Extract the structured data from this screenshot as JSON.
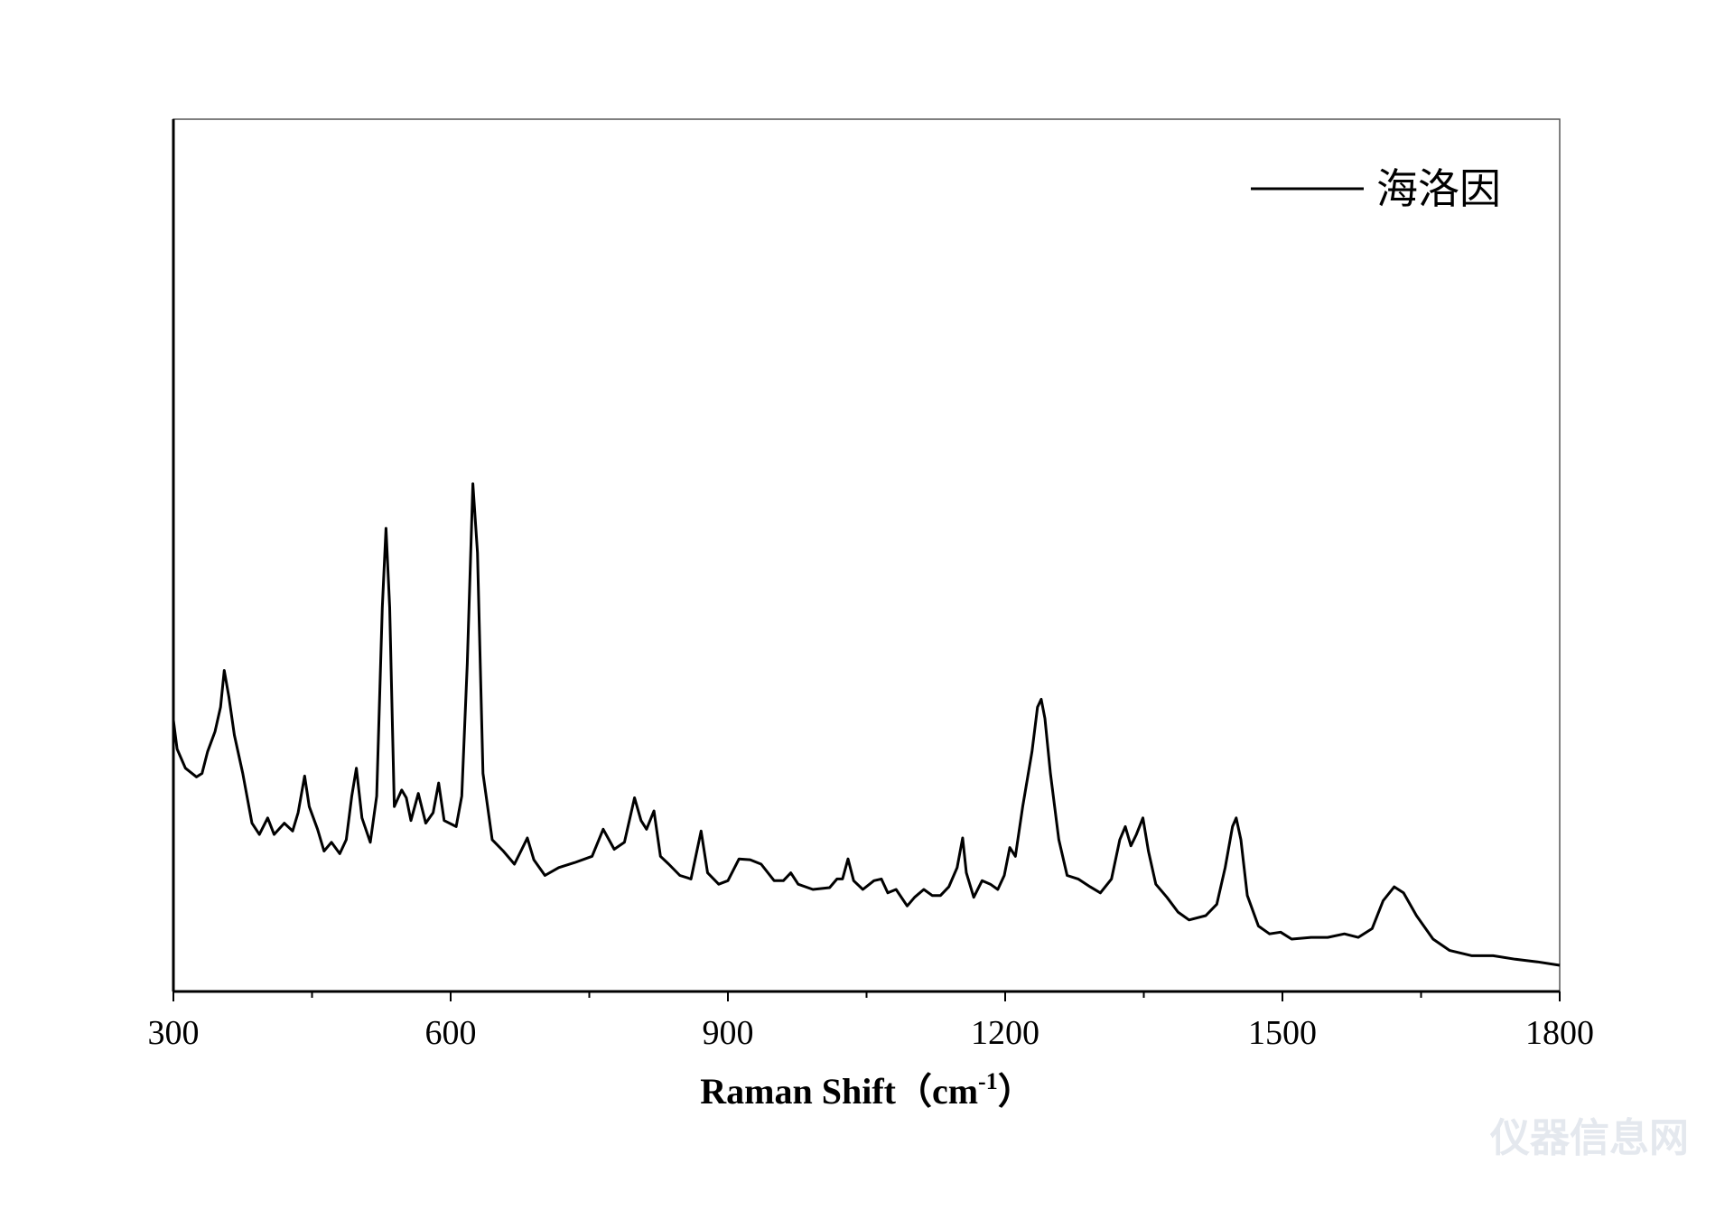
{
  "chart_data": {
    "type": "line",
    "xlabel": {
      "text": "Raman Shift（cm",
      "sup": "-1",
      "end": "）"
    },
    "xlim": [
      300,
      1800
    ],
    "xticks": [
      300,
      600,
      900,
      1200,
      1500,
      1800
    ],
    "xminor_ticks": [
      450,
      750,
      1050,
      1350,
      1650
    ],
    "ylim": [
      0,
      100
    ],
    "legend_position": "upper right",
    "watermark": "仪器信息网",
    "series": [
      {
        "name": "海洛因",
        "color": "#000000",
        "x": [
          300,
          304,
          313,
          325,
          331,
          337,
          345,
          351,
          355,
          360,
          366,
          375,
          385,
          393,
          402,
          409,
          420,
          429,
          435,
          442,
          447,
          456,
          463,
          471,
          480,
          487,
          493,
          498,
          504,
          513,
          520,
          526,
          530,
          534,
          539,
          547,
          552,
          557,
          565,
          573,
          581,
          587,
          593,
          606,
          612,
          618,
          624,
          629,
          635,
          645,
          657,
          669,
          677,
          683,
          690,
          702,
          717,
          735,
          753,
          765,
          777,
          788,
          799,
          806,
          812,
          820,
          827,
          836,
          848,
          860,
          871,
          878,
          890,
          900,
          912,
          924,
          936,
          950,
          960,
          968,
          976,
          992,
          1010,
          1018,
          1024,
          1030,
          1036,
          1046,
          1058,
          1066,
          1073,
          1082,
          1094,
          1102,
          1112,
          1121,
          1130,
          1139,
          1148,
          1154,
          1158,
          1166,
          1175,
          1184,
          1192,
          1199,
          1205,
          1211,
          1219,
          1229,
          1235,
          1239,
          1243,
          1249,
          1258,
          1267,
          1279,
          1292,
          1303,
          1315,
          1324,
          1330,
          1336,
          1342,
          1349,
          1355,
          1363,
          1375,
          1387,
          1399,
          1417,
          1429,
          1438,
          1446,
          1450,
          1455,
          1462,
          1474,
          1486,
          1498,
          1510,
          1531,
          1549,
          1567,
          1582,
          1597,
          1609,
          1621,
          1631,
          1645,
          1663,
          1681,
          1705,
          1728,
          1752,
          1776,
          1800
        ],
        "values": [
          31.1,
          27.8,
          25.6,
          24.6,
          25.0,
          27.5,
          29.8,
          32.6,
          36.8,
          33.8,
          29.4,
          25.0,
          19.3,
          18.0,
          19.9,
          18.0,
          19.3,
          18.4,
          20.5,
          24.7,
          21.2,
          18.6,
          16.1,
          17.1,
          15.8,
          17.4,
          22.4,
          25.6,
          19.9,
          17.1,
          22.4,
          44.0,
          53.1,
          44.0,
          21.2,
          23.1,
          22.2,
          19.6,
          22.7,
          19.3,
          20.5,
          23.9,
          19.6,
          18.9,
          22.4,
          37.6,
          58.2,
          50.3,
          25.0,
          17.4,
          16.1,
          14.6,
          16.3,
          17.6,
          15.1,
          13.3,
          14.2,
          14.8,
          15.5,
          18.6,
          16.3,
          17.1,
          22.2,
          19.6,
          18.6,
          20.7,
          15.5,
          14.6,
          13.3,
          12.9,
          18.4,
          13.6,
          12.3,
          12.7,
          15.2,
          15.1,
          14.6,
          12.7,
          12.7,
          13.6,
          12.3,
          11.7,
          11.9,
          12.9,
          12.9,
          15.2,
          12.7,
          11.7,
          12.7,
          12.9,
          11.3,
          11.7,
          9.8,
          10.8,
          11.7,
          11.0,
          11.0,
          12.0,
          14.2,
          17.6,
          13.6,
          10.8,
          12.7,
          12.3,
          11.7,
          13.3,
          16.5,
          15.5,
          21.2,
          27.5,
          32.6,
          33.5,
          31.3,
          25.0,
          17.4,
          13.3,
          12.9,
          12.0,
          11.3,
          12.9,
          17.4,
          18.9,
          16.7,
          18.0,
          19.9,
          16.1,
          12.3,
          10.8,
          9.1,
          8.2,
          8.7,
          10.0,
          14.2,
          18.9,
          19.9,
          17.4,
          11.0,
          7.5,
          6.6,
          6.8,
          6.0,
          6.2,
          6.2,
          6.6,
          6.2,
          7.2,
          10.4,
          12.0,
          11.3,
          8.7,
          6.0,
          4.7,
          4.1,
          4.1,
          3.7,
          3.4,
          3.0
        ]
      }
    ]
  }
}
